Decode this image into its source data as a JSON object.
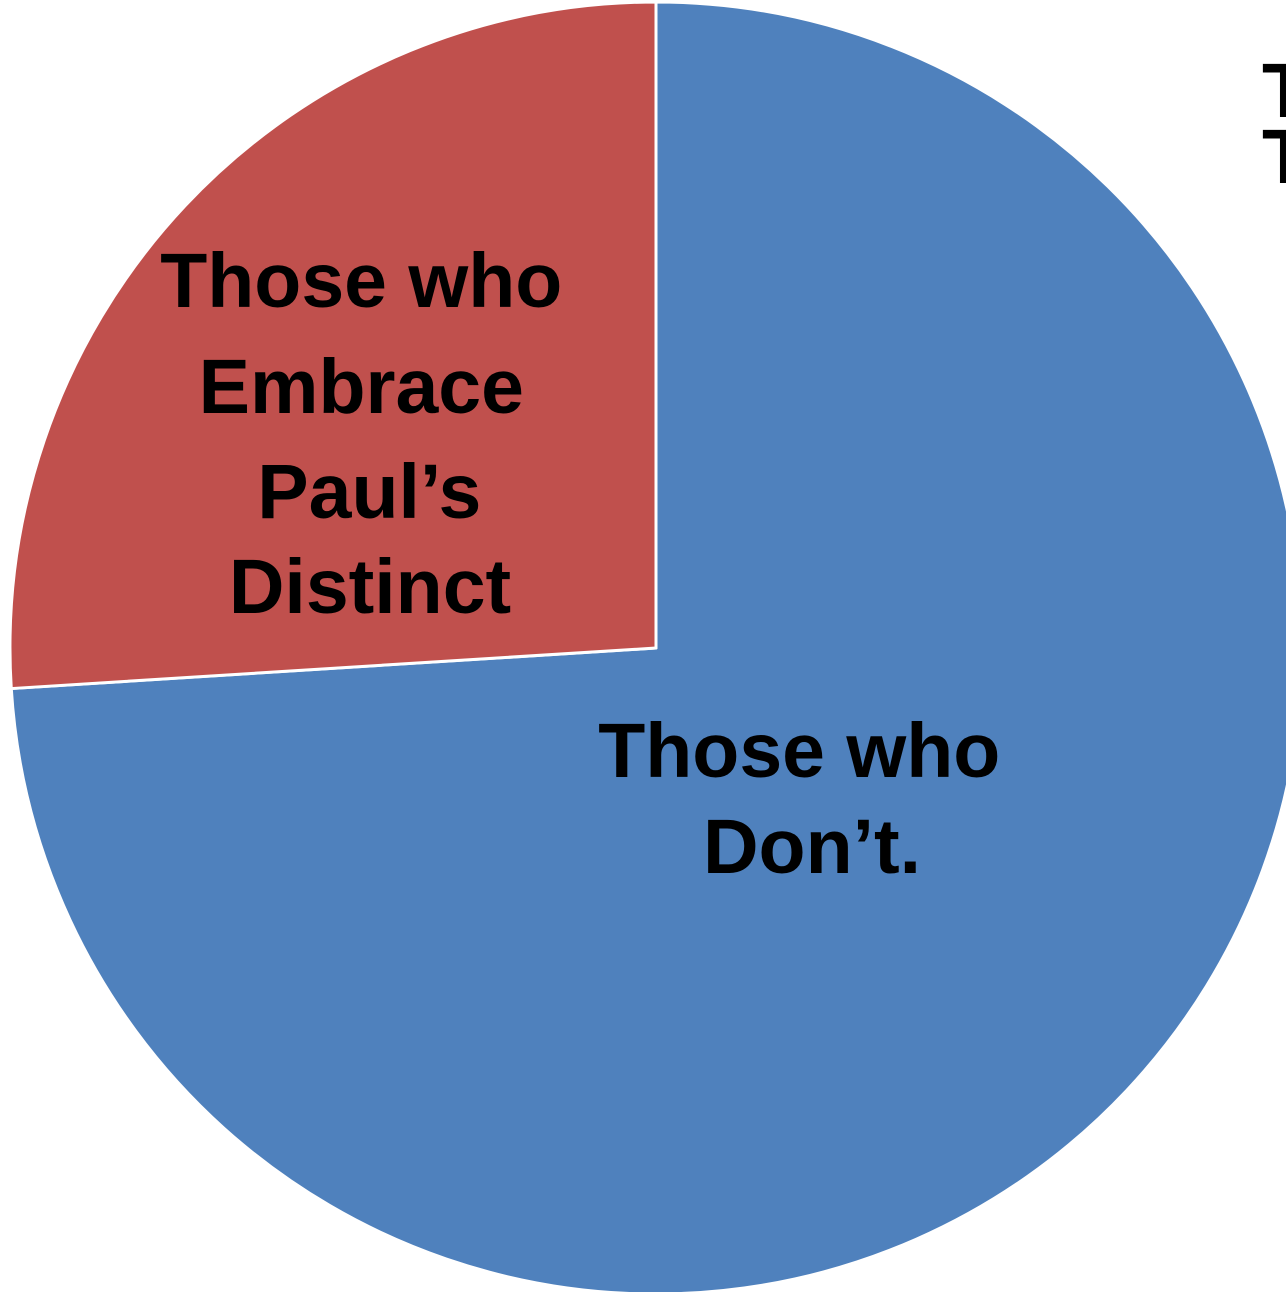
{
  "chart_data": {
    "type": "pie",
    "categories": [
      "Those who Don’t.",
      "Those who Embrace Paul’s Distinct"
    ],
    "values": [
      74,
      26
    ],
    "colors": [
      "#4F81BD",
      "#C0504D"
    ],
    "start_angle_deg": 0,
    "direction": "clockwise",
    "slice_border_color": "#FFFFFF",
    "labels": [
      {
        "lines": [
          "Those who",
          "Don’t."
        ]
      },
      {
        "lines": [
          "Those who",
          "Embrace",
          "Paul’s",
          "Distinct"
        ]
      }
    ]
  },
  "cropped_text": {
    "right_line_1": "T",
    "right_line_2": "T"
  }
}
